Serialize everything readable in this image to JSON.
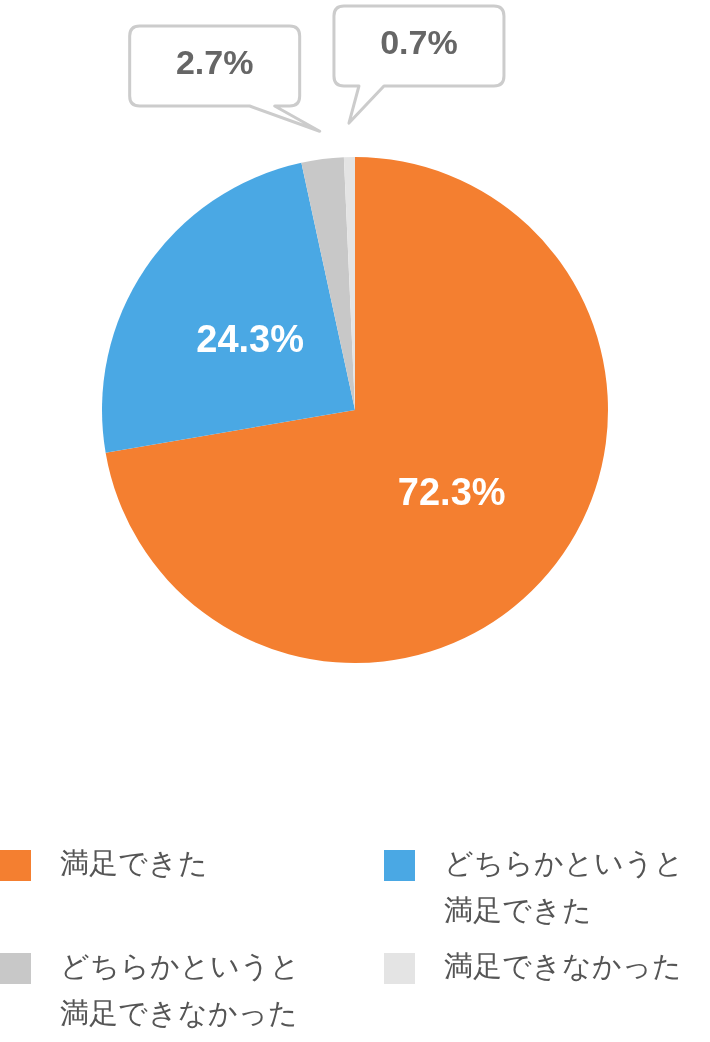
{
  "chart_data": {
    "type": "pie",
    "categories": [
      "満足できた",
      "どちらかというと満足できた",
      "どちらかというと満足できなかった",
      "満足できなかった"
    ],
    "values": [
      72.3,
      24.3,
      2.7,
      0.7
    ],
    "colors": [
      "#f47f30",
      "#4aa8e4",
      "#c8c8c8",
      "#e4e4e4"
    ],
    "value_labels": [
      "72.3%",
      "24.3%",
      "2.7%",
      "0.7%"
    ],
    "legend": "bottom"
  }
}
